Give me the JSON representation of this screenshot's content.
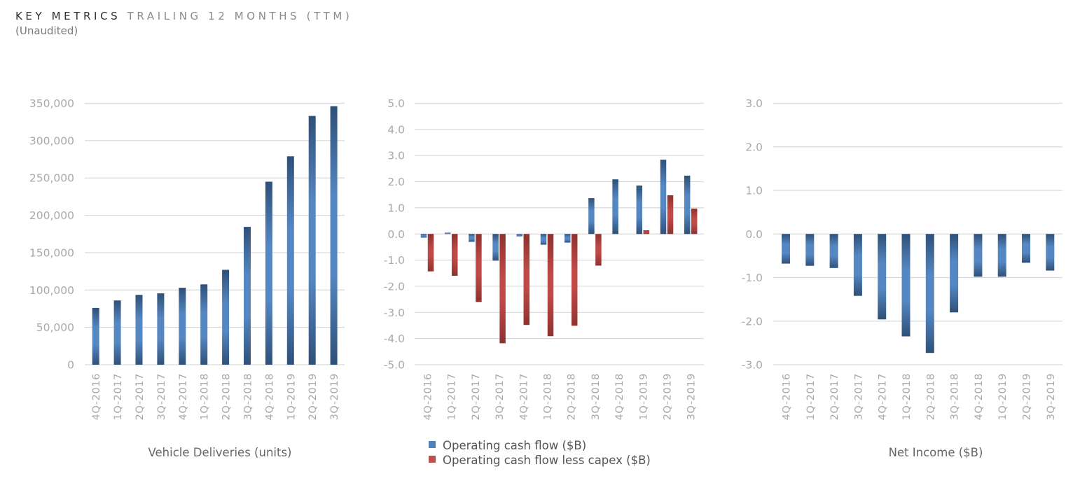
{
  "header": {
    "title_strong": "KEY METRICS",
    "title_light": "TRAILING 12 MONTHS (TTM)",
    "subtitle": "(Unaudited)"
  },
  "colors": {
    "blue": "#4f81bd",
    "blue_dark": "#2f5078",
    "blue_light": "#5587c2",
    "red": "#c0504d",
    "red_dark": "#8e3230",
    "red_light": "#bf4a47"
  },
  "chart_data": [
    {
      "type": "bar",
      "id": "deliveries",
      "title": "Vehicle Deliveries (units)",
      "xlabel": "",
      "ylabel": "",
      "categories": [
        "4Q-2016",
        "1Q-2017",
        "2Q-2017",
        "3Q-2017",
        "4Q-2017",
        "1Q-2018",
        "2Q-2018",
        "3Q-2018",
        "4Q-2018",
        "1Q-2019",
        "2Q-2019",
        "3Q-2019"
      ],
      "series": [
        {
          "name": "Vehicle Deliveries (units)",
          "color_key": "blue",
          "values": [
            76000,
            86000,
            93500,
            95500,
            103000,
            107500,
            127000,
            184500,
            245000,
            279000,
            333000,
            346000
          ]
        }
      ],
      "ylim": [
        0,
        350000
      ],
      "yticks": [
        0,
        50000,
        100000,
        150000,
        200000,
        250000,
        300000,
        350000
      ],
      "ytick_labels": [
        "0",
        "50,000",
        "100,000",
        "150,000",
        "200,000",
        "250,000",
        "300,000",
        "350,000"
      ],
      "grid": true,
      "legend": "none"
    },
    {
      "type": "bar",
      "id": "cashflow",
      "title": "",
      "xlabel": "",
      "ylabel": "",
      "categories": [
        "4Q-2016",
        "1Q-2017",
        "2Q-2017",
        "3Q-2017",
        "4Q-2017",
        "1Q-2018",
        "2Q-2018",
        "3Q-2018",
        "4Q-2018",
        "1Q-2019",
        "2Q-2019",
        "3Q-2019"
      ],
      "series": [
        {
          "name": "Operating cash flow ($B)",
          "color_key": "blue",
          "values": [
            -0.14,
            0.05,
            -0.3,
            -1.02,
            -0.09,
            -0.41,
            -0.33,
            1.37,
            2.09,
            1.85,
            2.84,
            2.23
          ]
        },
        {
          "name": "Operating cash flow less capex ($B)",
          "color_key": "red",
          "values": [
            -1.43,
            -1.6,
            -2.6,
            -4.18,
            -3.48,
            -3.91,
            -3.51,
            -1.21,
            0.0,
            0.14,
            1.48,
            0.97
          ]
        }
      ],
      "ylim": [
        -5.0,
        5.0
      ],
      "yticks": [
        5,
        4,
        3,
        2,
        1,
        0,
        -1,
        -2,
        -3,
        -4,
        -5
      ],
      "ytick_labels": [
        "5.0",
        "4.0",
        "3.0",
        "2.0",
        "1.0",
        "0.0",
        "-1.0",
        "-2.0",
        "-3.0",
        "-4.0",
        "-5.0"
      ],
      "grid": true,
      "legend": "bottom-left"
    },
    {
      "type": "bar",
      "id": "netincome",
      "title": "Net Income ($B)",
      "xlabel": "",
      "ylabel": "",
      "categories": [
        "4Q-2016",
        "1Q-2017",
        "2Q-2017",
        "3Q-2017",
        "4Q-2017",
        "1Q-2018",
        "2Q-2018",
        "3Q-2018",
        "4Q-2018",
        "1Q-2019",
        "2Q-2019",
        "3Q-2019"
      ],
      "series": [
        {
          "name": "Net Income ($B)",
          "color_key": "blue",
          "values": [
            -0.68,
            -0.73,
            -0.78,
            -1.42,
            -1.96,
            -2.35,
            -2.73,
            -1.8,
            -0.98,
            -0.98,
            -0.66,
            -0.84
          ]
        }
      ],
      "ylim": [
        -3.0,
        3.0
      ],
      "yticks": [
        3,
        2,
        1,
        0,
        -1,
        -2,
        -3
      ],
      "ytick_labels": [
        "3.0",
        "2.0",
        "1.0",
        "0.0",
        "-1.0",
        "-2.0",
        "-3.0"
      ],
      "grid": true,
      "legend": "none"
    }
  ]
}
